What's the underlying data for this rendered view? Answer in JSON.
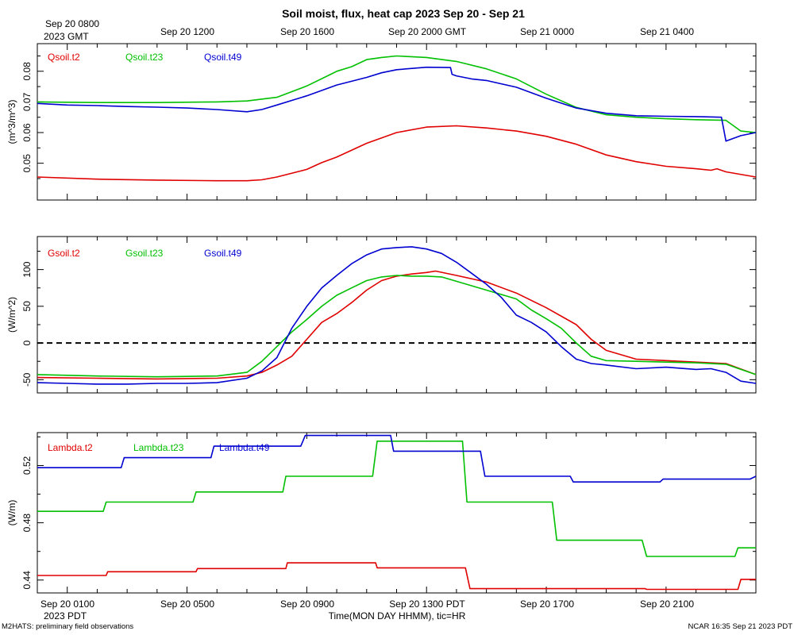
{
  "title": "Soil moist, flux, heat cap 2023 Sep 20 - Sep 21",
  "top_time_labels": [
    "Sep 20 0800",
    "Sep 20 1200",
    "Sep 20 1600",
    "Sep 20 2000 GMT",
    "Sep 21 0000",
    "Sep 21 0400"
  ],
  "top_year_label": "2023 GMT",
  "bottom_time_labels": [
    "Sep 20 0100",
    "Sep 20 0500",
    "Sep 20 0900",
    "Sep 20 1300 PDT",
    "Sep 20 1700",
    "Sep 20 2100"
  ],
  "bottom_year_label": "2023 PDT",
  "xlabel": "Time(MON DAY HHMM), tic=HR",
  "footer_left": "M2HATS: preliminary field observations",
  "footer_right": "NCAR 16:35 Sep 21 2023 PDT",
  "colors": {
    "red": "#e00000",
    "green": "#00c000",
    "blue": "#0000d0"
  },
  "chart_data": [
    {
      "type": "line",
      "ylabel": "(m^3/m^3)",
      "ylim": [
        0.038,
        0.089
      ],
      "yticks": [
        0.05,
        0.06,
        0.07,
        0.08
      ],
      "ytick_labels": [
        "0.05",
        "0.06",
        "0.07",
        "0.08"
      ],
      "x_unit": "hours since Sep 20 0000 PDT",
      "xlim": [
        0,
        24
      ],
      "series": [
        {
          "name": "Qsoil.t2",
          "color": "red",
          "x": [
            0,
            2,
            4,
            6,
            7,
            7.5,
            8,
            9,
            9.5,
            10,
            11,
            12,
            13,
            14,
            15,
            16,
            17,
            18,
            19,
            20,
            21,
            22,
            22.5,
            22.7,
            23,
            24
          ],
          "values": [
            0.0455,
            0.0448,
            0.0445,
            0.0443,
            0.0443,
            0.0446,
            0.0455,
            0.048,
            0.0502,
            0.052,
            0.0565,
            0.06,
            0.0618,
            0.0622,
            0.0615,
            0.0605,
            0.0588,
            0.0562,
            0.0527,
            0.0505,
            0.049,
            0.0482,
            0.0477,
            0.0482,
            0.0472,
            0.0455
          ]
        },
        {
          "name": "Qsoil.t23",
          "color": "green",
          "x": [
            0,
            2,
            4,
            6,
            7,
            8,
            9,
            9.8,
            10,
            10.5,
            11,
            11.5,
            12,
            13,
            14,
            15,
            16,
            17,
            18,
            19,
            20,
            21,
            22,
            23,
            23.5,
            24
          ],
          "values": [
            0.07,
            0.0698,
            0.0698,
            0.07,
            0.0703,
            0.0715,
            0.0752,
            0.079,
            0.08,
            0.0815,
            0.0838,
            0.0845,
            0.085,
            0.0845,
            0.0832,
            0.0808,
            0.0775,
            0.0725,
            0.0682,
            0.0658,
            0.065,
            0.0645,
            0.0642,
            0.064,
            0.0605,
            0.06
          ]
        },
        {
          "name": "Qsoil.t49",
          "color": "blue",
          "x": [
            0,
            1,
            2,
            3,
            4,
            5,
            6,
            7,
            7.5,
            8,
            9,
            10,
            11,
            11.5,
            12,
            13,
            13.8,
            13.85,
            14,
            14.5,
            15,
            16,
            17,
            18,
            19,
            20,
            21,
            22,
            22.85,
            23.0,
            23.5,
            24
          ],
          "values": [
            0.0695,
            0.069,
            0.0688,
            0.0685,
            0.0683,
            0.068,
            0.0675,
            0.0668,
            0.0675,
            0.069,
            0.072,
            0.0755,
            0.078,
            0.0795,
            0.0805,
            0.0813,
            0.0812,
            0.079,
            0.0785,
            0.0775,
            0.077,
            0.0748,
            0.0712,
            0.068,
            0.0663,
            0.0655,
            0.0653,
            0.0652,
            0.065,
            0.0572,
            0.059,
            0.06
          ]
        }
      ]
    },
    {
      "type": "line",
      "ylabel": "(W/m^2)",
      "ylim": [
        -68,
        145
      ],
      "yticks": [
        -50,
        0,
        50,
        100
      ],
      "ytick_labels": [
        "-50",
        "0",
        "50",
        "100"
      ],
      "xlim": [
        0,
        24
      ],
      "zero_line": true,
      "series": [
        {
          "name": "Gsoil.t2",
          "color": "red",
          "x": [
            0,
            2,
            4,
            6,
            7,
            7.5,
            8,
            8.5,
            9,
            9.5,
            10,
            10.5,
            11,
            11.5,
            12,
            12.5,
            13,
            13.3,
            14,
            15,
            16,
            17,
            18,
            18.5,
            19,
            20,
            21,
            22,
            23,
            24
          ],
          "values": [
            -47,
            -48,
            -49,
            -48,
            -45,
            -40,
            -30,
            -18,
            5,
            28,
            40,
            55,
            72,
            85,
            91,
            94,
            96,
            98,
            92,
            83,
            68,
            48,
            25,
            5,
            -10,
            -22,
            -24,
            -26,
            -28,
            -43
          ]
        },
        {
          "name": "Gsoil.t23",
          "color": "green",
          "x": [
            0,
            2,
            4,
            6,
            7,
            7.5,
            8,
            8.5,
            9,
            9.5,
            10,
            10.5,
            11,
            11.5,
            12,
            12.5,
            13,
            13.5,
            14,
            15,
            16,
            16.5,
            17,
            17.5,
            18,
            18.5,
            19,
            20,
            21,
            22,
            23,
            24
          ],
          "values": [
            -43,
            -45,
            -46,
            -45,
            -40,
            -25,
            -5,
            15,
            32,
            50,
            65,
            75,
            85,
            90,
            92,
            91,
            91,
            90,
            84,
            72,
            60,
            45,
            33,
            20,
            0,
            -18,
            -24,
            -25,
            -26,
            -27,
            -29,
            -43
          ]
        },
        {
          "name": "Gsoil.t49",
          "color": "blue",
          "x": [
            0,
            1,
            2,
            3,
            4,
            5,
            6,
            7,
            7.5,
            8,
            8.5,
            9,
            9.5,
            10,
            10.5,
            11,
            11.5,
            12,
            12.5,
            13,
            13.5,
            14,
            14.5,
            15,
            15.5,
            16,
            16.5,
            17,
            17.5,
            18,
            18.5,
            19,
            20,
            21,
            22,
            22.5,
            23,
            23.5,
            24
          ],
          "values": [
            -54,
            -55,
            -56,
            -56,
            -55,
            -55,
            -54,
            -48,
            -38,
            -20,
            20,
            50,
            75,
            92,
            108,
            120,
            128,
            130,
            131,
            128,
            122,
            110,
            95,
            80,
            62,
            38,
            28,
            15,
            -5,
            -22,
            -28,
            -30,
            -35,
            -33,
            -36,
            -35,
            -40,
            -52,
            -55
          ]
        }
      ]
    },
    {
      "type": "line",
      "ylabel": "(W/m)",
      "ylim": [
        0.431,
        0.543
      ],
      "yticks": [
        0.44,
        0.48,
        0.52
      ],
      "ytick_labels": [
        "0.44",
        "0.48",
        "0.52"
      ],
      "xlim": [
        0,
        24
      ],
      "series": [
        {
          "name": "Lambda.t2",
          "color": "red",
          "x": [
            0,
            2.3,
            2.35,
            5.3,
            5.35,
            8.3,
            8.35,
            11.3,
            11.35,
            14.3,
            14.45,
            20.3,
            20.35,
            23.4,
            23.5,
            24
          ],
          "values": [
            0.4432,
            0.4432,
            0.4458,
            0.4458,
            0.448,
            0.448,
            0.452,
            0.452,
            0.4485,
            0.4485,
            0.434,
            0.434,
            0.4335,
            0.4335,
            0.4405,
            0.4405
          ]
        },
        {
          "name": "Lambda.t23",
          "color": "green",
          "x": [
            0,
            2.2,
            2.3,
            5.2,
            5.3,
            8.2,
            8.3,
            11.2,
            11.35,
            14.2,
            14.35,
            17.2,
            17.35,
            20.2,
            20.35,
            23.3,
            23.4,
            24
          ],
          "values": [
            0.488,
            0.488,
            0.4945,
            0.4945,
            0.5015,
            0.5015,
            0.5125,
            0.5125,
            0.537,
            0.537,
            0.4945,
            0.4945,
            0.4678,
            0.4678,
            0.4565,
            0.4565,
            0.4625,
            0.4625
          ]
        },
        {
          "name": "Lambda.t49",
          "color": "blue",
          "x": [
            0,
            2.8,
            2.9,
            5.8,
            5.9,
            8.8,
            8.95,
            11.8,
            11.9,
            14.8,
            14.95,
            17.8,
            17.9,
            20.8,
            20.9,
            23.8,
            24
          ],
          "values": [
            0.5185,
            0.5185,
            0.5255,
            0.5255,
            0.5335,
            0.5335,
            0.541,
            0.541,
            0.53,
            0.53,
            0.5125,
            0.5125,
            0.5085,
            0.5085,
            0.5105,
            0.5105,
            0.5125
          ]
        }
      ]
    }
  ]
}
